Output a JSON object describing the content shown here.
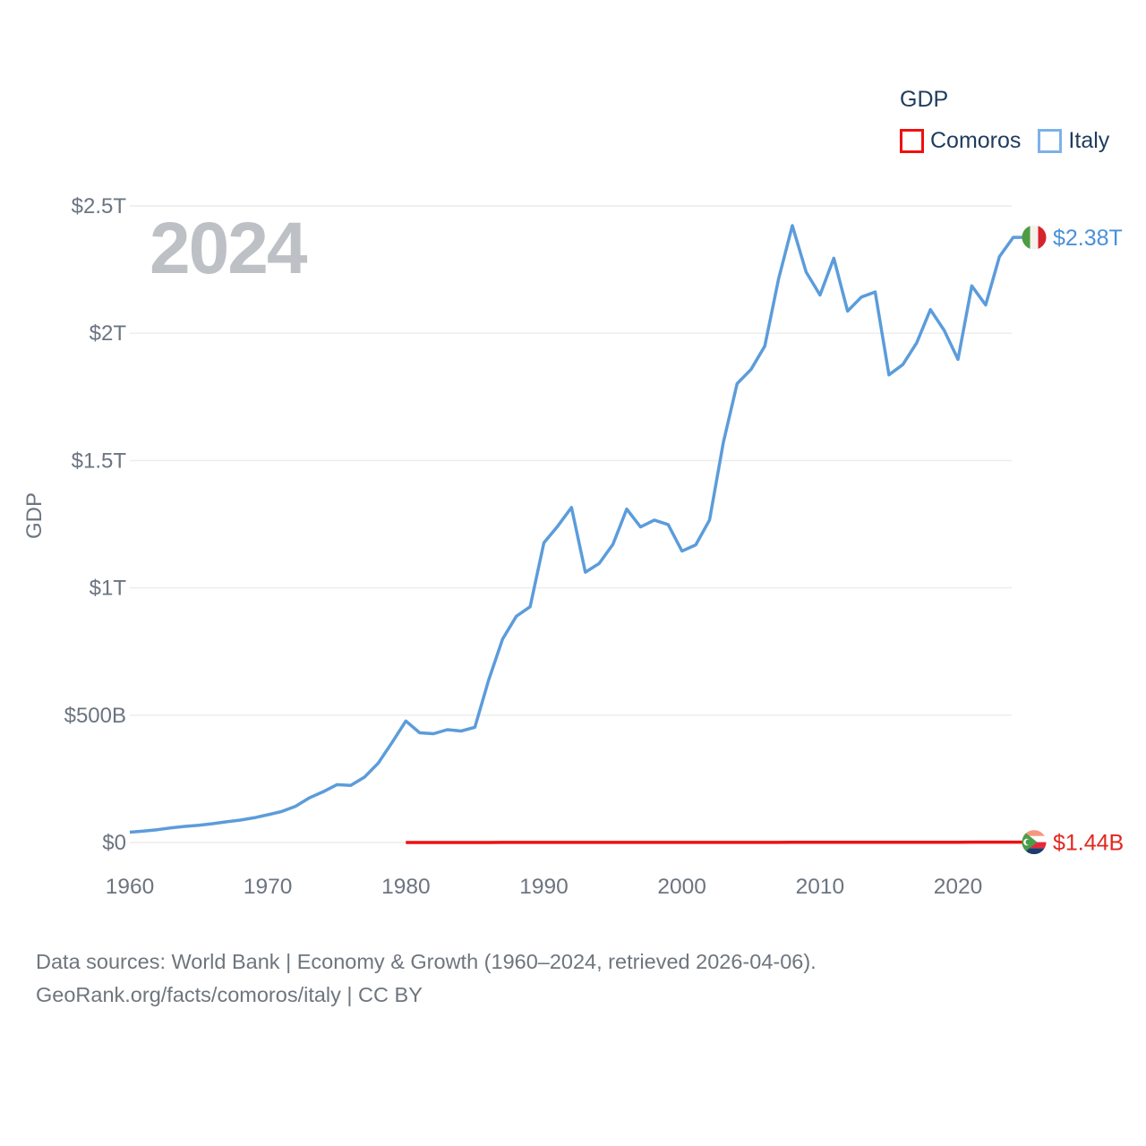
{
  "legend": {
    "title": "GDP",
    "items": [
      {
        "label": "Comoros",
        "swatch_color": "#ee1111"
      },
      {
        "label": "Italy",
        "swatch_color": "#7db1e8"
      }
    ]
  },
  "watermark": {
    "text": "2024",
    "color": "#bdc1c5"
  },
  "colors": {
    "gridline": "#ececec",
    "axis_text": "#6b7480",
    "heading_text": "#1f3b5e",
    "footer_text": "#6e757d",
    "italy_line": "#5b9cdb",
    "italy_label": "#4a90d9",
    "comoros_line": "#ee1111",
    "comoros_label": "#e3261d"
  },
  "chart_data": {
    "type": "line",
    "title": "GDP",
    "ylabel": "GDP",
    "xlim": [
      1960,
      2024
    ],
    "ylim_billions": [
      0,
      2500
    ],
    "grid": "horizontal",
    "legend_position": "top-right",
    "x_axis": {
      "years": [
        1960,
        1970,
        1980,
        1990,
        2000,
        2010,
        2020
      ]
    },
    "y_axis": {
      "values_billions": [
        0,
        500,
        1000,
        1500,
        2000,
        2500
      ],
      "labels": [
        "$0",
        "$500B",
        "$1T",
        "$1.5T",
        "$2T",
        "$2.5T"
      ]
    },
    "series": [
      {
        "name": "Comoros",
        "color": "#ee1111",
        "label_color": "#e3261d",
        "end_label": "$1.44B",
        "start_year": 1980,
        "end_year": 2024,
        "values_billions": [
          0.12,
          0.14,
          0.15,
          0.16,
          0.16,
          0.11,
          0.16,
          0.19,
          0.21,
          0.21,
          0.25,
          0.24,
          0.26,
          0.26,
          0.18,
          0.22,
          0.22,
          0.19,
          0.19,
          0.22,
          0.2,
          0.22,
          0.25,
          0.32,
          0.37,
          0.36,
          0.4,
          0.46,
          0.53,
          0.53,
          0.53,
          0.61,
          0.6,
          0.66,
          0.64,
          0.9,
          0.95,
          1.07,
          1.18,
          1.18,
          1.22,
          1.28,
          1.25,
          1.35,
          1.44
        ]
      },
      {
        "name": "Italy",
        "color": "#5b9cdb",
        "label_color": "#4a90d9",
        "end_label": "$2.38T",
        "start_year": 1960,
        "end_year": 2024,
        "values_billions": [
          40.4,
          44.8,
          50.4,
          57.6,
          63.2,
          67.9,
          73.7,
          81.1,
          87.9,
          97.1,
          109.0,
          121.6,
          142.0,
          175.0,
          199.1,
          227.0,
          224.1,
          256.8,
          311.9,
          392.9,
          477.3,
          430.7,
          427.3,
          443.0,
          437.9,
          452.7,
          638.3,
          798.4,
          888.6,
          925.8,
          1177.3,
          1242.2,
          1315.8,
          1061.4,
          1095.7,
          1170.8,
          1309.3,
          1239.1,
          1266.3,
          1248.6,
          1144.4,
          1168.9,
          1266.5,
          1570.7,
          1802.1,
          1857.5,
          1949.4,
          2213.1,
          2422.7,
          2240.0,
          2150.0,
          2294.6,
          2087.0,
          2141.9,
          2162.0,
          1836.6,
          1877.1,
          1961.8,
          2092.9,
          2011.3,
          1897.5,
          2186.0,
          2111.0,
          2301.0,
          2376.5
        ]
      }
    ]
  },
  "footer": {
    "line1": "Data sources: World Bank | Economy & Growth (1960–2024, retrieved 2026-04-06).",
    "line2": "GeoRank.org/facts/comoros/italy | CC BY"
  }
}
